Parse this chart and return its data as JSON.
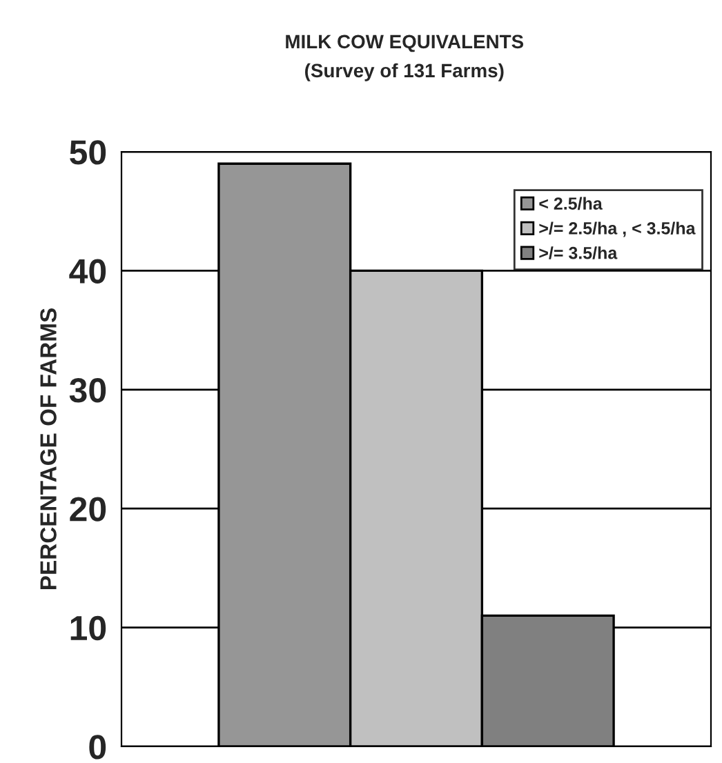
{
  "chart_data": {
    "type": "bar",
    "title": "MILK COW EQUIVALENTS\n(Survey of 131 Farms)",
    "ylabel": "PERCENTAGE OF FARMS",
    "categories": [
      null
    ],
    "series": [
      {
        "name": "< 2.5/ha",
        "color": "#969696",
        "values": [
          49
        ]
      },
      {
        "name": ">/= 2.5/ha , < 3.5/ha",
        "color": "#c0c0c0",
        "values": [
          40
        ]
      },
      {
        "name": ">/= 3.5/ha",
        "color": "#808080",
        "values": [
          11
        ]
      }
    ],
    "ylim": [
      0,
      50
    ],
    "yticks": [
      0,
      10,
      20,
      30,
      40,
      50
    ],
    "grid": "y",
    "legend": "top right"
  }
}
